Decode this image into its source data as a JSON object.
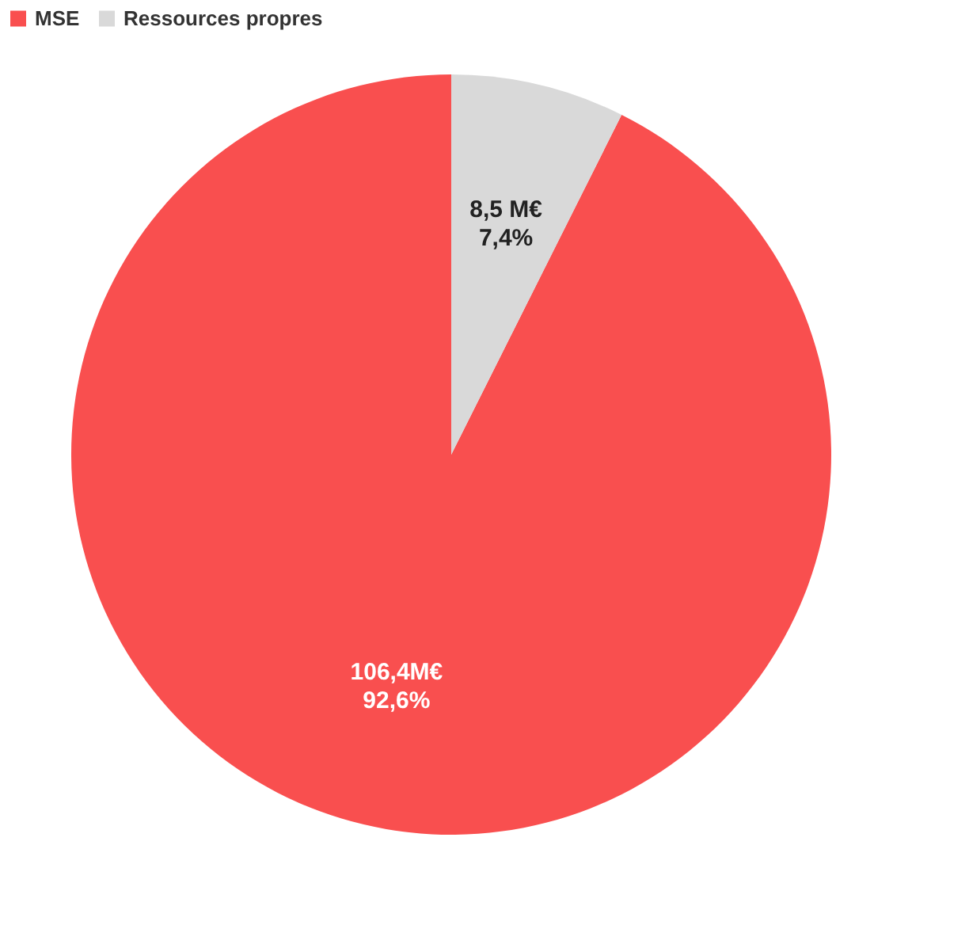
{
  "chart_data": {
    "type": "pie",
    "categories": [
      "MSE",
      "Ressources propres"
    ],
    "values": [
      106.4,
      8.5
    ],
    "colors": [
      "#f94f4f",
      "#d9d9d9"
    ],
    "value_labels": [
      "106,4M€",
      "8,5 M€"
    ],
    "annotations": [
      "92,6%",
      "7,4%"
    ],
    "legend": "top"
  }
}
